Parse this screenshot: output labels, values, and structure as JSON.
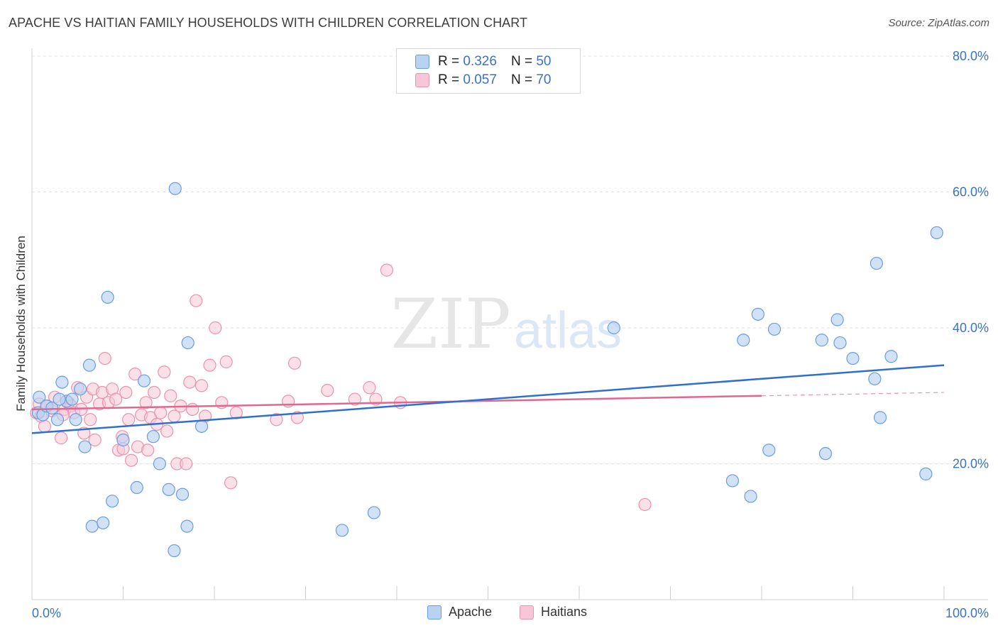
{
  "header": {
    "title": "APACHE VS HAITIAN FAMILY HOUSEHOLDS WITH CHILDREN CORRELATION CHART",
    "source": "Source: ZipAtlas.com"
  },
  "watermark": {
    "zip": "ZIP",
    "atlas": "atlas"
  },
  "legend": {
    "rows": [
      {
        "r_label": "R =",
        "r_value": "0.326",
        "n_label": "N =",
        "n_value": "50"
      },
      {
        "r_label": "R =",
        "r_value": "0.057",
        "n_label": "N =",
        "n_value": "70"
      }
    ]
  },
  "colors": {
    "apache_fill": "#b8d3f2",
    "apache_stroke": "#6a9de0",
    "apache_line": "#2f6fcf",
    "haitians_fill": "#f8c6d6",
    "haitians_stroke": "#e893b0",
    "haitians_line": "#e2678f",
    "tick_label": "#3a72c9",
    "grid": "#e3e3e3"
  },
  "chart_data": {
    "type": "scatter",
    "title": "APACHE VS HAITIAN FAMILY HOUSEHOLDS WITH CHILDREN CORRELATION CHART",
    "xlabel": "",
    "ylabel": "Family Households with Children",
    "xlim": [
      0,
      100
    ],
    "ylim": [
      0,
      83
    ],
    "x_tick_labels": [
      "0.0%",
      "100.0%"
    ],
    "y_ticks": [
      20,
      40,
      60,
      80
    ],
    "y_tick_labels": [
      "20.0%",
      "40.0%",
      "60.0%",
      "80.0%"
    ],
    "grid": true,
    "legend_position": "top-center",
    "series": [
      {
        "name": "Apache",
        "r": 0.326,
        "n": 50,
        "trend": {
          "x": [
            0,
            100
          ],
          "y": [
            24.5,
            34.5
          ]
        },
        "points": [
          [
            0.8,
            29.8
          ],
          [
            0.7,
            27.5
          ],
          [
            1.2,
            27.2
          ],
          [
            1.6,
            28.5
          ],
          [
            2.2,
            28.2
          ],
          [
            2.8,
            26.5
          ],
          [
            3.3,
            32.0
          ],
          [
            3.8,
            29.2
          ],
          [
            4.4,
            29.5
          ],
          [
            4.8,
            26.5
          ],
          [
            5.3,
            31.0
          ],
          [
            5.8,
            22.5
          ],
          [
            6.3,
            34.5
          ],
          [
            6.6,
            10.8
          ],
          [
            7.8,
            11.3
          ],
          [
            8.3,
            44.5
          ],
          [
            8.8,
            14.5
          ],
          [
            10.0,
            23.5
          ],
          [
            11.5,
            16.5
          ],
          [
            12.3,
            32.2
          ],
          [
            13.3,
            24.0
          ],
          [
            14.0,
            20.0
          ],
          [
            15.0,
            16.2
          ],
          [
            15.6,
            7.2
          ],
          [
            15.7,
            60.5
          ],
          [
            16.5,
            15.5
          ],
          [
            17.0,
            10.8
          ],
          [
            17.1,
            37.8
          ],
          [
            18.6,
            25.5
          ],
          [
            34.0,
            10.2
          ],
          [
            37.5,
            12.8
          ],
          [
            63.8,
            40.0
          ],
          [
            76.8,
            17.5
          ],
          [
            78.0,
            38.2
          ],
          [
            78.8,
            15.2
          ],
          [
            79.6,
            42.0
          ],
          [
            80.8,
            22.0
          ],
          [
            81.4,
            39.8
          ],
          [
            86.6,
            38.2
          ],
          [
            87.0,
            21.5
          ],
          [
            88.3,
            41.2
          ],
          [
            88.6,
            37.8
          ],
          [
            90.0,
            35.5
          ],
          [
            92.4,
            32.5
          ],
          [
            92.6,
            49.5
          ],
          [
            93.0,
            26.8
          ],
          [
            94.2,
            35.8
          ],
          [
            98.0,
            18.5
          ],
          [
            99.2,
            54.0
          ],
          [
            3.0,
            29.5
          ]
        ]
      },
      {
        "name": "Haitians",
        "r": 0.057,
        "n": 70,
        "trend": {
          "x": [
            0,
            80
          ],
          "y": [
            28.0,
            30.0
          ]
        },
        "trend_dashed": {
          "x": [
            80,
            100
          ],
          "y": [
            30.0,
            30.5
          ]
        },
        "points": [
          [
            0.5,
            27.5
          ],
          [
            0.8,
            28.8
          ],
          [
            1.0,
            27.0
          ],
          [
            1.4,
            25.5
          ],
          [
            1.7,
            28.5
          ],
          [
            2.2,
            27.8
          ],
          [
            2.5,
            29.8
          ],
          [
            3.2,
            23.8
          ],
          [
            3.6,
            28.0
          ],
          [
            4.0,
            29.0
          ],
          [
            4.3,
            28.5
          ],
          [
            4.6,
            27.5
          ],
          [
            5.0,
            31.2
          ],
          [
            5.4,
            28.0
          ],
          [
            5.7,
            24.5
          ],
          [
            6.0,
            29.8
          ],
          [
            6.4,
            26.5
          ],
          [
            6.7,
            31.0
          ],
          [
            6.9,
            23.5
          ],
          [
            7.4,
            28.8
          ],
          [
            7.7,
            30.5
          ],
          [
            8.0,
            35.5
          ],
          [
            8.4,
            29.0
          ],
          [
            8.8,
            31.0
          ],
          [
            9.2,
            29.5
          ],
          [
            9.5,
            22.0
          ],
          [
            10.0,
            22.2
          ],
          [
            10.3,
            30.5
          ],
          [
            10.6,
            26.5
          ],
          [
            10.9,
            20.5
          ],
          [
            11.3,
            33.2
          ],
          [
            11.6,
            22.5
          ],
          [
            12.0,
            27.2
          ],
          [
            12.5,
            29.0
          ],
          [
            12.7,
            22.0
          ],
          [
            13.0,
            26.8
          ],
          [
            13.4,
            30.5
          ],
          [
            13.7,
            25.8
          ],
          [
            14.1,
            27.5
          ],
          [
            14.5,
            33.5
          ],
          [
            14.8,
            24.8
          ],
          [
            15.2,
            30.0
          ],
          [
            15.6,
            27.0
          ],
          [
            15.9,
            20.0
          ],
          [
            16.3,
            28.5
          ],
          [
            16.9,
            20.0
          ],
          [
            17.3,
            32.0
          ],
          [
            17.6,
            28.0
          ],
          [
            18.0,
            44.0
          ],
          [
            18.6,
            31.5
          ],
          [
            19.0,
            27.0
          ],
          [
            19.5,
            34.5
          ],
          [
            20.1,
            40.0
          ],
          [
            20.8,
            29.0
          ],
          [
            21.3,
            35.0
          ],
          [
            21.8,
            17.2
          ],
          [
            22.4,
            27.5
          ],
          [
            26.8,
            26.5
          ],
          [
            28.1,
            29.2
          ],
          [
            28.8,
            34.8
          ],
          [
            29.1,
            26.8
          ],
          [
            32.4,
            30.8
          ],
          [
            35.4,
            29.5
          ],
          [
            37.0,
            31.2
          ],
          [
            37.7,
            29.5
          ],
          [
            38.9,
            48.5
          ],
          [
            40.4,
            29.0
          ],
          [
            67.2,
            14.0
          ],
          [
            3.4,
            27.2
          ],
          [
            9.9,
            24.0
          ]
        ]
      }
    ]
  },
  "bottom_legend": {
    "apache": "Apache",
    "haitians": "Haitians"
  }
}
